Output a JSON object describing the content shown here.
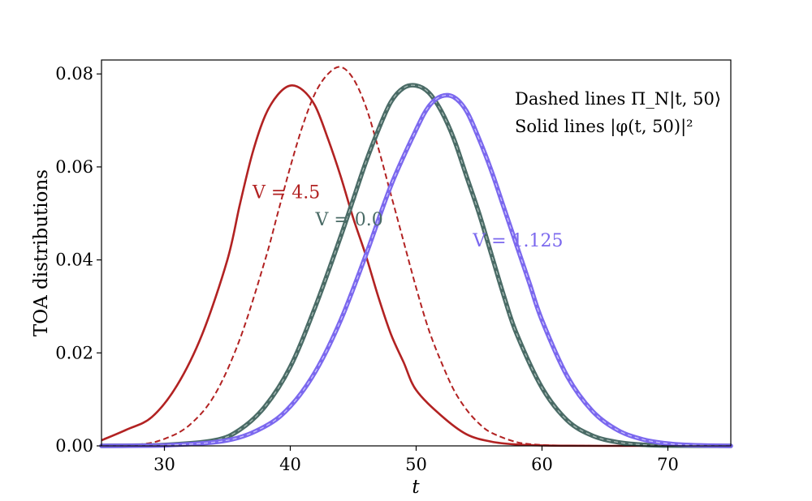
{
  "chart_data": {
    "type": "line",
    "title": "",
    "xlabel": "t",
    "ylabel": "TOA distributions",
    "xlim": [
      25,
      75
    ],
    "ylim": [
      0,
      0.083
    ],
    "xticks": [
      30,
      40,
      50,
      60,
      70
    ],
    "yticks": [
      0.0,
      0.02,
      0.04,
      0.06,
      0.08
    ],
    "xtick_labels": [
      "30",
      "40",
      "50",
      "60",
      "70"
    ],
    "ytick_labels": [
      "0.00",
      "0.02",
      "0.04",
      "0.06",
      "0.08"
    ],
    "grid": false,
    "annotations": [
      "Dashed lines Π_N|t, 50⟩",
      "Solid lines |φ(t, 50)|²"
    ],
    "series": [
      {
        "name": "V = 4.5",
        "line_style": "solid",
        "color": "#b22222",
        "x": [
          25,
          27,
          29,
          31,
          33,
          35,
          36,
          37,
          38,
          39,
          40,
          41,
          42,
          43,
          44,
          45,
          46,
          47,
          48,
          49,
          50,
          52,
          54,
          56,
          58,
          60,
          62,
          65,
          70,
          75
        ],
        "y": [
          0.0012,
          0.0035,
          0.0062,
          0.013,
          0.024,
          0.04,
          0.052,
          0.063,
          0.071,
          0.0755,
          0.0775,
          0.0765,
          0.073,
          0.066,
          0.058,
          0.049,
          0.041,
          0.032,
          0.024,
          0.018,
          0.012,
          0.0065,
          0.0025,
          0.0009,
          0.0003,
          0.0001,
          3e-05,
          0.0,
          0.0,
          0.0
        ]
      },
      {
        "name": "V = 4.5",
        "line_style": "dashed",
        "color": "#b22222",
        "x": [
          25,
          28,
          30,
          32,
          34,
          36,
          38,
          39,
          40,
          41,
          42,
          43,
          44,
          45,
          46,
          47,
          48,
          49,
          50,
          51,
          52,
          53,
          54,
          55,
          56,
          58,
          60,
          62,
          64,
          66,
          70,
          75
        ],
        "y": [
          0.0,
          0.0003,
          0.0015,
          0.0045,
          0.011,
          0.023,
          0.04,
          0.05,
          0.06,
          0.069,
          0.076,
          0.08,
          0.0815,
          0.079,
          0.073,
          0.064,
          0.054,
          0.044,
          0.034,
          0.025,
          0.018,
          0.012,
          0.0078,
          0.0048,
          0.0028,
          0.0008,
          0.0002,
          5e-05,
          1e-05,
          0.0,
          0.0,
          0.0
        ]
      },
      {
        "name": "V = 0.0",
        "line_style": "solid",
        "color": "#4a6b66",
        "x": [
          25,
          30,
          34,
          36,
          38,
          40,
          42,
          44,
          45,
          46,
          47,
          48,
          49,
          50,
          51,
          52,
          53,
          54,
          55,
          56,
          57,
          58,
          60,
          62,
          64,
          66,
          68,
          70,
          75
        ],
        "y": [
          0.0,
          0.0002,
          0.0012,
          0.0035,
          0.0085,
          0.017,
          0.03,
          0.045,
          0.053,
          0.061,
          0.068,
          0.074,
          0.077,
          0.0775,
          0.076,
          0.072,
          0.066,
          0.058,
          0.05,
          0.041,
          0.032,
          0.024,
          0.0125,
          0.0055,
          0.0022,
          0.0008,
          0.00025,
          7e-05,
          0.0
        ]
      },
      {
        "name": "V = 1.125",
        "line_style": "solid",
        "color": "#7b68ee",
        "x": [
          25,
          30,
          35,
          38,
          40,
          42,
          44,
          46,
          48,
          50,
          51,
          52,
          53,
          54,
          55,
          56,
          57,
          58,
          59,
          60,
          62,
          64,
          66,
          68,
          70,
          72,
          75
        ],
        "y": [
          0.0,
          0.0001,
          0.0012,
          0.0042,
          0.0085,
          0.016,
          0.027,
          0.041,
          0.056,
          0.068,
          0.073,
          0.0752,
          0.075,
          0.072,
          0.066,
          0.059,
          0.051,
          0.043,
          0.035,
          0.027,
          0.015,
          0.0075,
          0.0034,
          0.0014,
          0.0005,
          0.00015,
          0.0
        ]
      }
    ],
    "curve_labels": [
      {
        "text": "V = 4.5",
        "x": 37,
        "y": 0.0533,
        "color": "#b22222"
      },
      {
        "text": "V = 0.0",
        "x": 42,
        "y": 0.0474,
        "color": "#4a6b66"
      },
      {
        "text": "V = 1.125",
        "x": 54.5,
        "y": 0.0429,
        "color": "#7b68ee"
      }
    ]
  }
}
